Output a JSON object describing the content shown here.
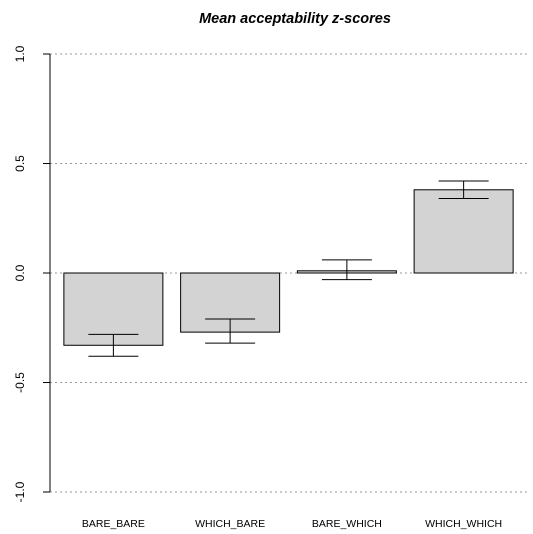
{
  "chart_data": {
    "type": "bar",
    "title": "Mean acceptability z-scores",
    "categories": [
      "BARE_BARE",
      "WHICH_BARE",
      "BARE_WHICH",
      "WHICH_WHICH"
    ],
    "values": [
      -0.33,
      -0.27,
      0.01,
      0.38
    ],
    "error_low": [
      -0.38,
      -0.32,
      -0.03,
      0.34
    ],
    "error_high": [
      -0.28,
      -0.21,
      0.06,
      0.42
    ],
    "ylim": [
      -1.0,
      1.0
    ],
    "yticks": [
      -1.0,
      -0.5,
      0.0,
      0.5,
      1.0
    ],
    "ytick_labels": [
      "-1.0",
      "-0.5",
      "0.0",
      "0.5",
      "1.0"
    ],
    "grid": true,
    "bar_color": "#d3d3d3",
    "xlabel": "",
    "ylabel": ""
  }
}
